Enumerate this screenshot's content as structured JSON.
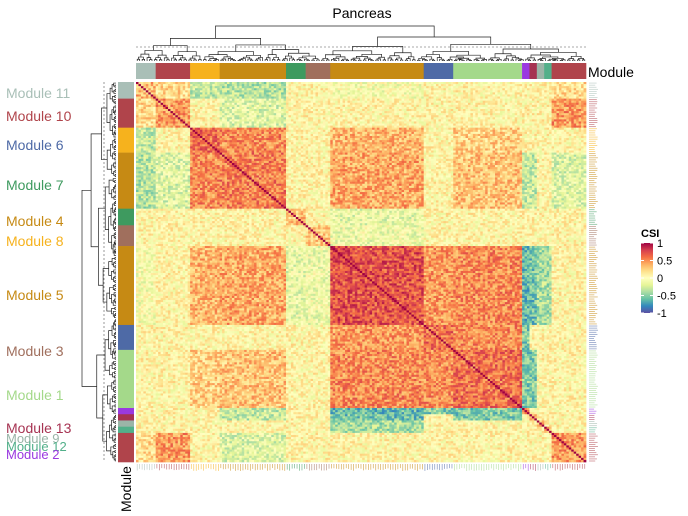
{
  "chart_data": {
    "type": "heatmap",
    "title": "Pancreas",
    "annotation_label": "Module",
    "legend": {
      "title": "CSI",
      "range": [
        -1,
        1
      ],
      "ticks": [
        "1",
        "0.5",
        "0",
        "-0.5",
        "-1"
      ],
      "tick_values": [
        1,
        0.5,
        0,
        -0.5,
        -1
      ],
      "colors": [
        "#5e4fa2",
        "#3288bd",
        "#66c2a5",
        "#abdda4",
        "#e6f598",
        "#ffffbf",
        "#fee08b",
        "#fdae61",
        "#f46d43",
        "#d53e4f",
        "#9e0142"
      ]
    },
    "module_order": [
      "Module 11",
      "Module 10",
      "Module 6",
      "Module 7",
      "Module 4",
      "Module 8",
      "Module 5",
      "Module 3",
      "Module 1",
      "Module 13",
      "Module 9",
      "Module 12",
      "Module 2"
    ],
    "modules": [
      {
        "name": "Module 11",
        "label": "Module 11",
        "color": "#a9bfb7",
        "size": 8
      },
      {
        "name": "Module 10",
        "label": "Module 10",
        "color": "#b0444b",
        "size": 14
      },
      {
        "name": "Module 6",
        "label": "Module 6",
        "color": "#4e6aa6",
        "size": 12
      },
      {
        "name": "Module 7",
        "label": "Module 7",
        "color": "#3e9a5f",
        "size": 8
      },
      {
        "name": "Module 4",
        "label": "Module 4",
        "color": "#c68a14",
        "size": 27
      },
      {
        "name": "Module 8",
        "label": "Module 8",
        "color": "#f6b21d",
        "size": 12
      },
      {
        "name": "Module 5",
        "label": "Module 5",
        "color": "#c68a14",
        "size": 38
      },
      {
        "name": "Module 3",
        "label": "Module 3",
        "color": "#a06f5d",
        "size": 10
      },
      {
        "name": "Module 1",
        "label": "Module 1",
        "color": "#a4d98a",
        "size": 28
      },
      {
        "name": "Module 13",
        "label": "Module 13",
        "color": "#a63352",
        "size": 3
      },
      {
        "name": "Module 9",
        "label": "Module 9",
        "color": "#9bb5a8",
        "size": 3
      },
      {
        "name": "Module 12",
        "label": "Module 12",
        "color": "#52b08a",
        "size": 3
      },
      {
        "name": "Module 2",
        "label": "Module 2",
        "color": "#9a39e0",
        "size": 3
      }
    ],
    "row_strip": [
      "Module 11",
      "Module 10",
      "Module 8",
      "Module 4",
      "Module 7",
      "Module 3",
      "Module 5",
      "Module 6",
      "Module 1",
      "Module 2",
      "Module 13",
      "Module 9",
      "Module 12",
      "Module 10"
    ],
    "col_strip": [
      "Module 11",
      "Module 10",
      "Module 8",
      "Module 4",
      "Module 7",
      "Module 3",
      "Module 5",
      "Module 6",
      "Module 1",
      "Module 2",
      "Module 13",
      "Module 9",
      "Module 12",
      "Module 10"
    ],
    "blocks": [
      {
        "a": "Module 4",
        "b": "Module 4",
        "csi": 0.55
      },
      {
        "a": "Module 4",
        "b": "Module 8",
        "csi": 0.5
      },
      {
        "a": "Module 8",
        "b": "Module 8",
        "csi": 0.6
      },
      {
        "a": "Module 4",
        "b": "Module 5",
        "csi": 0.4
      },
      {
        "a": "Module 8",
        "b": "Module 5",
        "csi": 0.35
      },
      {
        "a": "Module 5",
        "b": "Module 5",
        "csi": 0.7
      },
      {
        "a": "Module 5",
        "b": "Module 6",
        "csi": 0.45
      },
      {
        "a": "Module 5",
        "b": "Module 1",
        "csi": 0.5
      },
      {
        "a": "Module 6",
        "b": "Module 6",
        "csi": 0.6
      },
      {
        "a": "Module 6",
        "b": "Module 1",
        "csi": 0.5
      },
      {
        "a": "Module 1",
        "b": "Module 1",
        "csi": 0.6
      },
      {
        "a": "Module 10",
        "b": "Module 10",
        "csi": 0.45
      },
      {
        "a": "Module 11",
        "b": "Module 11",
        "csi": 0.35
      },
      {
        "a": "Module 11",
        "b": "Module 10",
        "csi": 0.2
      },
      {
        "a": "Module 7",
        "b": "Module 7",
        "csi": 0.3
      },
      {
        "a": "Module 3",
        "b": "Module 3",
        "csi": 0.3
      },
      {
        "a": "Module 4",
        "b": "Module 1",
        "csi": 0.3
      },
      {
        "a": "Module 8",
        "b": "Module 1",
        "csi": 0.25
      },
      {
        "a": "Module 10",
        "b": "Module 5",
        "csi": 0.05
      },
      {
        "a": "Module 11",
        "b": "Module 5",
        "csi": -0.05
      },
      {
        "a": "Module 2",
        "b": "Module 2",
        "csi": 0.6
      },
      {
        "a": "Module 13",
        "b": "Module 13",
        "csi": 0.5
      },
      {
        "a": "Module 9",
        "b": "Module 9",
        "csi": 0.4
      },
      {
        "a": "Module 12",
        "b": "Module 12",
        "csi": 0.4
      },
      {
        "a": "Module 2",
        "b": "Module 5",
        "csi": -0.6
      },
      {
        "a": "Module 2",
        "b": "Module 1",
        "csi": -0.5
      },
      {
        "a": "Module 2",
        "b": "Module 6",
        "csi": -0.5
      },
      {
        "a": "Module 13",
        "b": "Module 5",
        "csi": -0.55
      },
      {
        "a": "Module 13",
        "b": "Module 1",
        "csi": -0.5
      },
      {
        "a": "Module 9",
        "b": "Module 5",
        "csi": -0.4
      },
      {
        "a": "Module 12",
        "b": "Module 5",
        "csi": -0.4
      },
      {
        "a": "Module 2",
        "b": "Module 4",
        "csi": -0.3
      },
      {
        "a": "Module 13",
        "b": "Module 4",
        "csi": -0.3
      },
      {
        "a": "Module 11",
        "b": "Module 4",
        "csi": -0.35
      },
      {
        "a": "Module 11",
        "b": "Module 8",
        "csi": -0.3
      },
      {
        "a": "Module 10",
        "b": "Module 4",
        "csi": -0.2
      },
      {
        "a": "Module 7",
        "b": "Module 5",
        "csi": -0.15
      },
      {
        "a": "Module 3",
        "b": "Module 5",
        "csi": -0.1
      }
    ],
    "default_csi": 0.05,
    "diagonal_csi": 1
  }
}
